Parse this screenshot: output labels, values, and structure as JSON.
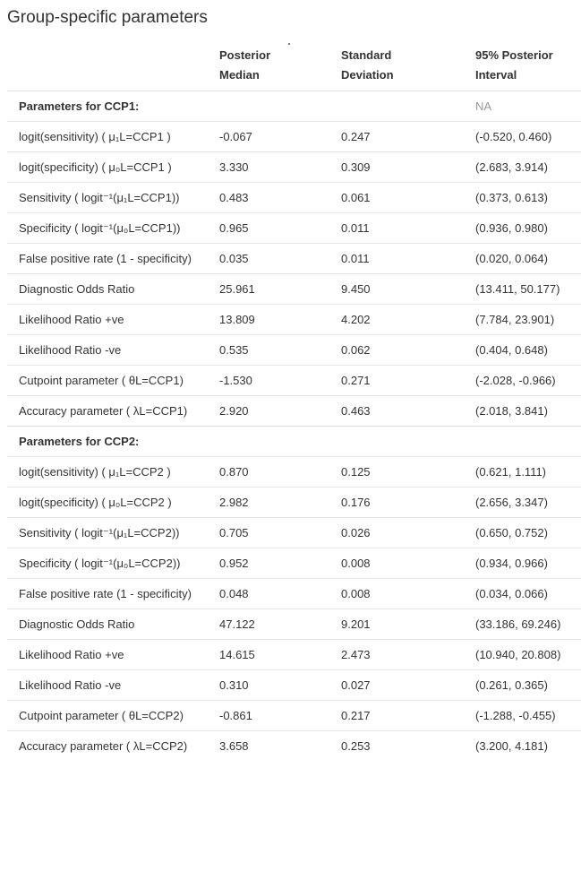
{
  "page": {
    "title": "Group-specific parameters"
  },
  "table": {
    "columns": [
      {
        "line1": "",
        "line2": ""
      },
      {
        "line1": "Posterior",
        "line2": "Median"
      },
      {
        "line1": "Standard",
        "line2": "Deviation"
      },
      {
        "line1": "95% Posterior",
        "line2": "Interval"
      }
    ],
    "groups": [
      {
        "label": "Parameters for CCP1:",
        "note": "NA",
        "rows": [
          {
            "label": "logit(sensitivity) ( μ₁L=CCP1 )",
            "median": "-0.067",
            "sd": "0.247",
            "interval": "(-0.520, 0.460)"
          },
          {
            "label": "logit(specificity) ( μ₀L=CCP1 )",
            "median": "3.330",
            "sd": "0.309",
            "interval": "(2.683, 3.914)"
          },
          {
            "label": "Sensitivity ( logit⁻¹(μ₁L=CCP1))",
            "median": "0.483",
            "sd": "0.061",
            "interval": "(0.373, 0.613)"
          },
          {
            "label": "Specificity ( logit⁻¹(μ₀L=CCP1))",
            "median": "0.965",
            "sd": "0.011",
            "interval": "(0.936, 0.980)"
          },
          {
            "label": "False positive rate (1 - specificity)",
            "median": "0.035",
            "sd": "0.011",
            "interval": "(0.020, 0.064)"
          },
          {
            "label": "Diagnostic Odds Ratio",
            "median": "25.961",
            "sd": "9.450",
            "interval": "(13.411, 50.177)"
          },
          {
            "label": "Likelihood Ratio +ve",
            "median": "13.809",
            "sd": "4.202",
            "interval": "(7.784, 23.901)"
          },
          {
            "label": "Likelihood Ratio -ve",
            "median": "0.535",
            "sd": "0.062",
            "interval": "(0.404, 0.648)"
          },
          {
            "label": "Cutpoint parameter ( θL=CCP1)",
            "median": "-1.530",
            "sd": "0.271",
            "interval": "(-2.028, -0.966)"
          },
          {
            "label": "Accuracy parameter ( λL=CCP1)",
            "median": "2.920",
            "sd": "0.463",
            "interval": "(2.018, 3.841)"
          }
        ]
      },
      {
        "label": "Parameters for CCP2:",
        "note": "",
        "rows": [
          {
            "label": "logit(sensitivity) ( μ₁L=CCP2 )",
            "median": "0.870",
            "sd": "0.125",
            "interval": "(0.621, 1.111)"
          },
          {
            "label": "logit(specificity) ( μ₀L=CCP2 )",
            "median": "2.982",
            "sd": "0.176",
            "interval": "(2.656, 3.347)"
          },
          {
            "label": "Sensitivity ( logit⁻¹(μ₁L=CCP2))",
            "median": "0.705",
            "sd": "0.026",
            "interval": "(0.650, 0.752)"
          },
          {
            "label": "Specificity ( logit⁻¹(μ₀L=CCP2))",
            "median": "0.952",
            "sd": "0.008",
            "interval": "(0.934, 0.966)"
          },
          {
            "label": "False positive rate (1 - specificity)",
            "median": "0.048",
            "sd": "0.008",
            "interval": "(0.034, 0.066)"
          },
          {
            "label": "Diagnostic Odds Ratio",
            "median": "47.122",
            "sd": "9.201",
            "interval": "(33.186, 69.246)"
          },
          {
            "label": "Likelihood Ratio +ve",
            "median": "14.615",
            "sd": "2.473",
            "interval": "(10.940, 20.808)"
          },
          {
            "label": "Likelihood Ratio -ve",
            "median": "0.310",
            "sd": "0.027",
            "interval": "(0.261, 0.365)"
          },
          {
            "label": "Cutpoint parameter ( θL=CCP2)",
            "median": "-0.861",
            "sd": "0.217",
            "interval": "(-1.288, -0.455)"
          },
          {
            "label": "Accuracy parameter ( λL=CCP2)",
            "median": "3.658",
            "sd": "0.253",
            "interval": "(3.200, 4.181)"
          }
        ]
      }
    ]
  },
  "colors": {
    "text": "#333333",
    "muted": "#999999",
    "rule": "#e7e7e7"
  }
}
